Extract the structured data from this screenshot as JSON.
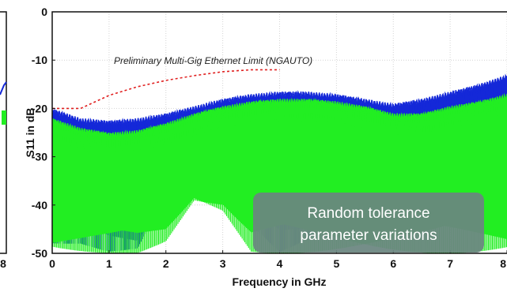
{
  "chart_data": {
    "type": "line",
    "title": "",
    "xlabel": "Frequency in GHz",
    "ylabel": "S11 in dB",
    "xlim": [
      0,
      8
    ],
    "ylim": [
      -50,
      0
    ],
    "x_ticks": [
      "0",
      "1",
      "2",
      "3",
      "4",
      "5",
      "6",
      "7",
      "8"
    ],
    "y_ticks": [
      "0",
      "-10",
      "-20",
      "-30",
      "-40",
      "-50"
    ],
    "grid": true,
    "left_panel_x_tick": "8",
    "series": [
      {
        "color": "#1428d8",
        "style": "solid",
        "x": [
          0,
          0.5,
          1,
          1.5,
          2,
          2.5,
          3,
          3.5,
          4,
          4.5,
          5,
          5.5,
          6,
          6.5,
          7,
          7.5,
          8
        ],
        "upper": [
          -20,
          -22,
          -22.5,
          -22,
          -21,
          -19.5,
          -18,
          -17,
          -16.5,
          -16.5,
          -17,
          -18,
          -19,
          -18,
          -16.5,
          -15,
          -13
        ],
        "lower": [
          -48,
          -48,
          -50,
          -50,
          -40,
          -32,
          -36,
          -44,
          -50,
          -48,
          -42,
          -38,
          -30,
          -34,
          -40,
          -42,
          -44
        ]
      },
      {
        "color": "#22ee22",
        "style": "solid",
        "x": [
          0,
          0.5,
          1,
          1.5,
          2,
          2.5,
          3,
          3.5,
          4,
          4.5,
          5,
          5.5,
          6,
          6.5,
          7,
          7.5,
          8
        ],
        "upper": [
          -22,
          -24,
          -25,
          -24.5,
          -23,
          -21,
          -19.5,
          -18.5,
          -18,
          -18,
          -18.5,
          -19.5,
          -21,
          -21,
          -19.5,
          -18.5,
          -17
        ],
        "lower": [
          -50,
          -50,
          -50,
          -50,
          -48,
          -40,
          -42,
          -50,
          -50,
          -50,
          -50,
          -50,
          -50,
          -50,
          -50,
          -50,
          -50
        ]
      },
      {
        "name": "Preliminary Multi-Gig Ethernet Limit (NGAUTO)",
        "color": "#e02020",
        "style": "dashed",
        "x": [
          0,
          0.5,
          1,
          1.5,
          2,
          2.5,
          3,
          3.5,
          4
        ],
        "y": [
          -20,
          -20,
          -17.3,
          -15.5,
          -14.2,
          -13.2,
          -12.4,
          -12,
          -12
        ]
      }
    ],
    "annotations": [
      {
        "text_line1": "Random tolerance",
        "text_line2": "parameter variations",
        "background": "#6a8580"
      }
    ]
  }
}
